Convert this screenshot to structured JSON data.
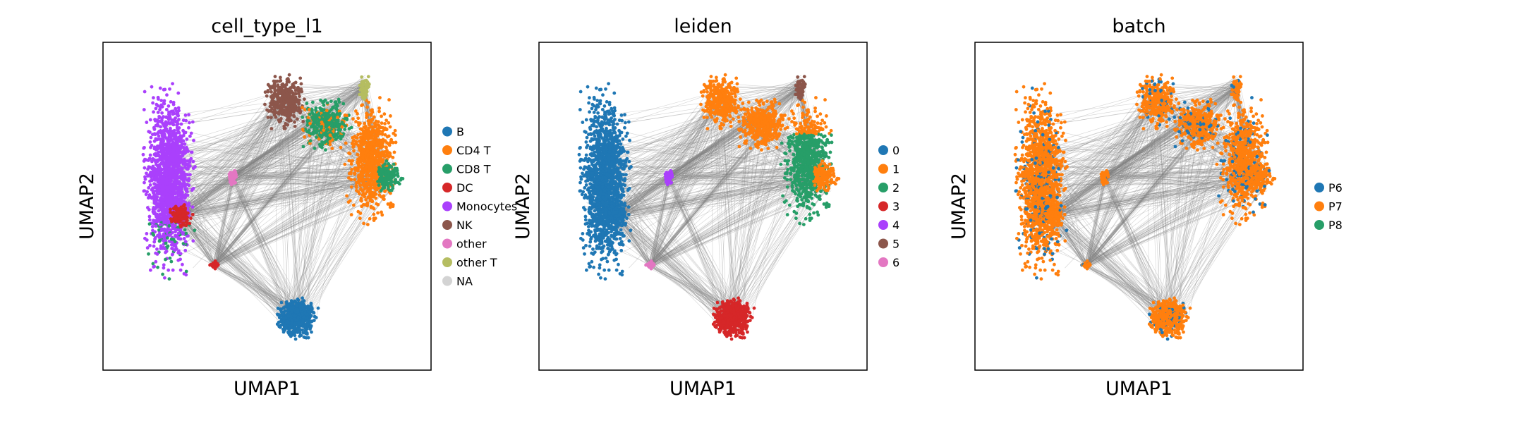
{
  "chart_data": [
    {
      "type": "scatter",
      "title": "cell_type_l1",
      "xlabel": "UMAP1",
      "ylabel": "UMAP2",
      "legend": "right",
      "graph_edges": true,
      "edge_color": "#808080",
      "categories": [
        {
          "name": "B",
          "color": "#1f77b4"
        },
        {
          "name": "CD4 T",
          "color": "#ff7f0e"
        },
        {
          "name": "CD8 T",
          "color": "#279e68"
        },
        {
          "name": "DC",
          "color": "#d62728"
        },
        {
          "name": "Monocytes",
          "color": "#aa40fc"
        },
        {
          "name": "NK",
          "color": "#8c564b"
        },
        {
          "name": "other",
          "color": "#e377c2"
        },
        {
          "name": "other T",
          "color": "#b5bd61"
        },
        {
          "name": "NA",
          "color": "#d3d3d3"
        }
      ]
    },
    {
      "type": "scatter",
      "title": "leiden",
      "xlabel": "UMAP1",
      "ylabel": "UMAP2",
      "legend": "right",
      "graph_edges": true,
      "edge_color": "#808080",
      "categories": [
        {
          "name": "0",
          "color": "#1f77b4"
        },
        {
          "name": "1",
          "color": "#ff7f0e"
        },
        {
          "name": "2",
          "color": "#279e68"
        },
        {
          "name": "3",
          "color": "#d62728"
        },
        {
          "name": "4",
          "color": "#aa40fc"
        },
        {
          "name": "5",
          "color": "#8c564b"
        },
        {
          "name": "6",
          "color": "#e377c2"
        }
      ]
    },
    {
      "type": "scatter",
      "title": "batch",
      "xlabel": "UMAP1",
      "ylabel": "UMAP2",
      "legend": "right",
      "graph_edges": true,
      "edge_color": "#808080",
      "categories": [
        {
          "name": "P6",
          "color": "#1f77b4"
        },
        {
          "name": "P7",
          "color": "#ff7f0e"
        },
        {
          "name": "P8",
          "color": "#279e68"
        }
      ]
    }
  ]
}
